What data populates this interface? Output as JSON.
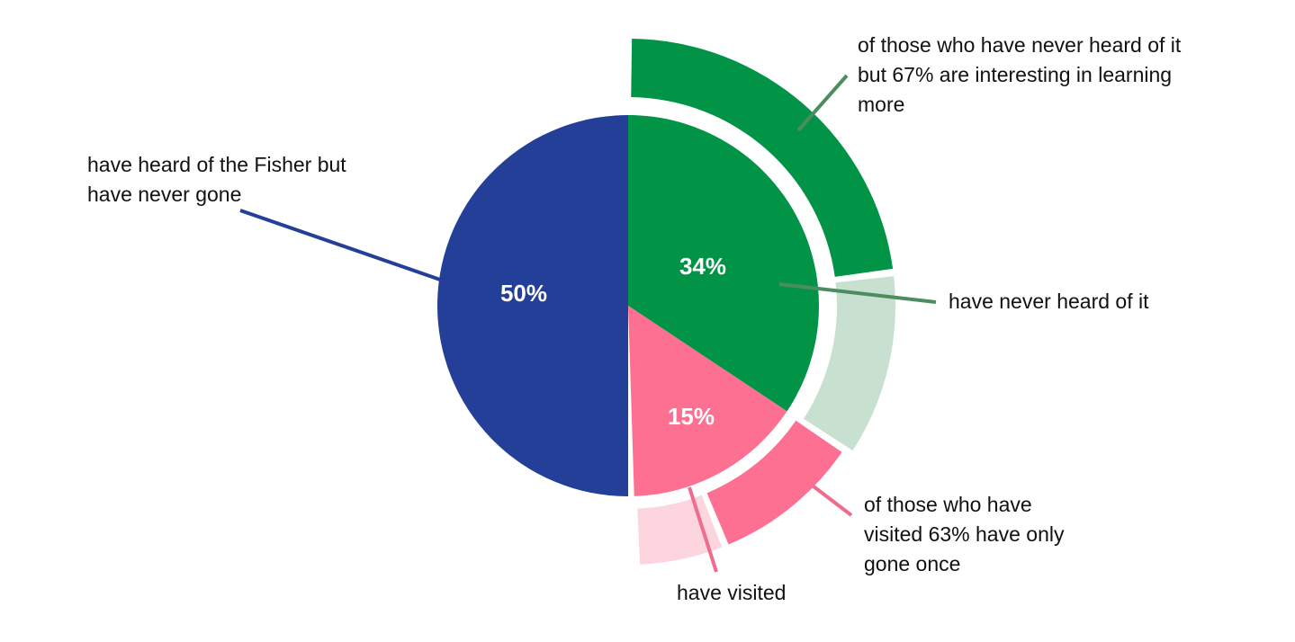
{
  "chart_data": {
    "type": "pie",
    "slices": [
      {
        "name": "have heard of the Fisher but have never gone",
        "value": 50,
        "label": "50%",
        "color": "#233f97"
      },
      {
        "name": "have never heard of it",
        "value": 34,
        "label": "34%",
        "color": "#019447"
      },
      {
        "name": "have visited",
        "value": 15,
        "label": "15%",
        "color": "#fd7091"
      }
    ],
    "outer_ring": [
      {
        "parent": "have never heard of it",
        "share_percent": 67,
        "color": "#019447",
        "rest_color": "#c7e0cf"
      },
      {
        "parent": "have visited",
        "share_percent": 63,
        "color": "#fd7091",
        "rest_color": "#fdd5df"
      }
    ],
    "annotations": {
      "heard_never_gone": "have heard of the Fisher but\nhave never gone",
      "never_heard": "have never heard of it",
      "never_heard_interest": "of those who have never heard of it\nbut 67% are interesting in learning\nmore",
      "visited": "have visited",
      "visited_once": "of those who have\nvisited 63% have only\ngone once"
    }
  }
}
